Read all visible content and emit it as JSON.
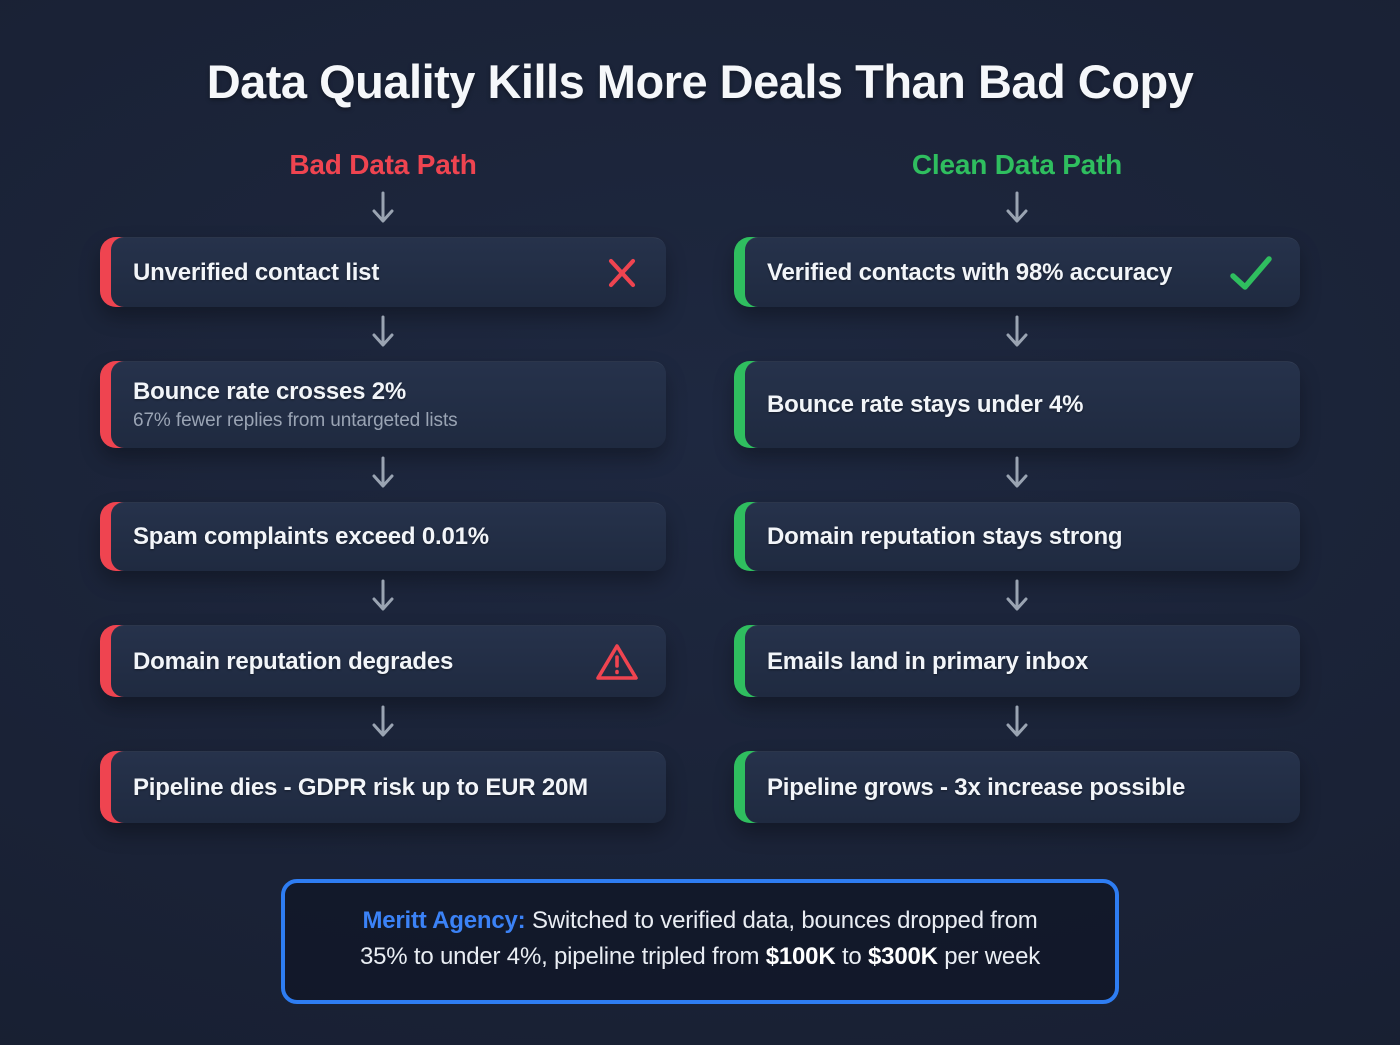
{
  "title": "Data Quality Kills More Deals Than Bad Copy",
  "colors": {
    "background": "#1a2236",
    "card": "#222e45",
    "bad_accent": "#ef4450",
    "clean_accent": "#2fbe5f",
    "arrow": "#9aa4b2",
    "callout_border": "#2e7df2",
    "agency_blue": "#3b82f6",
    "subtext_gray": "#9aa4b4"
  },
  "columns": [
    {
      "id": "bad",
      "header": "Bad Data Path",
      "accent": "#ef4450",
      "steps": [
        {
          "label": "Unverified contact list",
          "icon": "x-icon"
        },
        {
          "label": "Bounce rate crosses 2%",
          "sublabel": "67% fewer replies from untargeted lists"
        },
        {
          "label": "Spam complaints exceed 0.01%"
        },
        {
          "label": "Domain reputation degrades",
          "icon": "warning-icon"
        },
        {
          "label": "Pipeline dies - GDPR risk up to EUR 20M"
        }
      ]
    },
    {
      "id": "clean",
      "header": "Clean Data Path",
      "accent": "#2fbe5f",
      "steps": [
        {
          "label": "Verified contacts with 98% accuracy",
          "icon": "check-icon"
        },
        {
          "label": "Bounce rate stays under 4%"
        },
        {
          "label": "Domain reputation stays strong"
        },
        {
          "label": "Emails land in primary inbox"
        },
        {
          "label": "Pipeline grows - 3x increase possible"
        }
      ]
    }
  ],
  "callout": {
    "agency": "Meritt Agency:",
    "line1": "Switched to verified data, bounces dropped from",
    "line2_pre": "35% to under 4%, pipeline tripled from",
    "amount1": "$100K",
    "connector": "to",
    "amount2": "$300K",
    "suffix": "per week"
  }
}
